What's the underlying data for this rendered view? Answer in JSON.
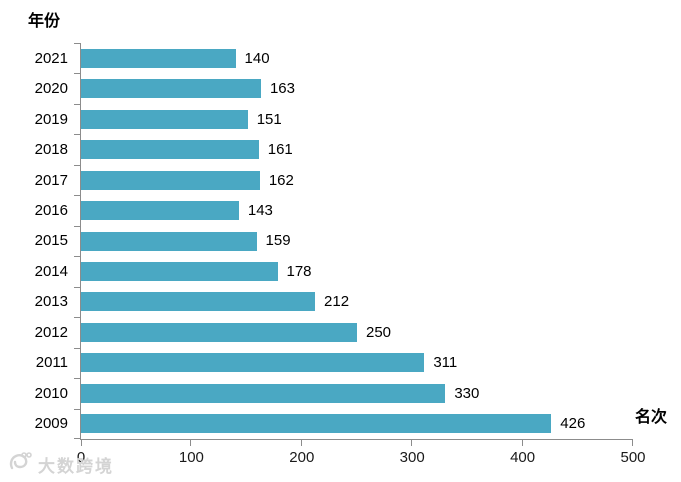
{
  "chart_data": {
    "type": "bar",
    "orientation": "horizontal",
    "title": "年份",
    "xlabel": "名次",
    "ylabel": "年份",
    "categories": [
      "2021",
      "2020",
      "2019",
      "2018",
      "2017",
      "2016",
      "2015",
      "2014",
      "2013",
      "2012",
      "2011",
      "2010",
      "2009"
    ],
    "values": [
      140,
      163,
      151,
      161,
      162,
      143,
      159,
      178,
      212,
      250,
      311,
      330,
      426
    ],
    "xlim": [
      0,
      500
    ],
    "x_ticks": [
      0,
      100,
      200,
      300,
      400,
      500
    ],
    "value_labels": true,
    "grid": false,
    "legend": false
  },
  "colors": {
    "bar": "#4AA8C3",
    "axis": "#8C8C8C",
    "text": "#000000",
    "watermark": "#D4D4D4"
  },
  "watermark": {
    "text": "大数跨境"
  }
}
